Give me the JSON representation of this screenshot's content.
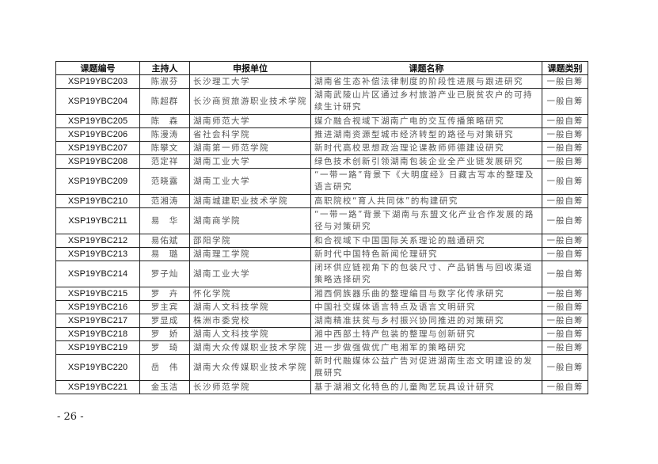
{
  "table": {
    "headers": [
      "课题编号",
      "主持人",
      "申报单位",
      "课题名称",
      "课题类别"
    ],
    "rows": [
      {
        "code": "XSP19YBC203",
        "host": "陈淑芬",
        "unit": "长沙理工大学",
        "title": "湖南省生态补偿法律制度的阶段性进展与跟进研究",
        "category": "一般自筹"
      },
      {
        "code": "XSP19YBC204",
        "host": "陈超群",
        "unit": "长沙商贸旅游职业技术学院",
        "title": "湖南武陵山片区通过乡村旅游产业已脱贫农户的可持续生计研究",
        "category": "一般自筹"
      },
      {
        "code": "XSP19YBC205",
        "host": "陈　森",
        "unit": "湖南师范大学",
        "title": "媒介融合视域下湖南广电的交互传播策略研究",
        "category": "一般自筹"
      },
      {
        "code": "XSP19YBC206",
        "host": "陈漫涛",
        "unit": "省社会科学院",
        "title": "推进湖南资源型城市经济转型的路径与对策研究",
        "category": "一般自筹"
      },
      {
        "code": "XSP19YBC207",
        "host": "陈攀文",
        "unit": "湖南第一师范学院",
        "title": "新时代高校思想政治理论课教师师德建设研究",
        "category": "一般自筹"
      },
      {
        "code": "XSP19YBC208",
        "host": "范定祥",
        "unit": "湖南工业大学",
        "title": "绿色技术创新引领湖南包装企业全产业链发展研究",
        "category": "一般自筹"
      },
      {
        "code": "XSP19YBC209",
        "host": "范晓露",
        "unit": "湖南工业大学",
        "title": "“一带一路”背景下《大明度经》日藏古写本的整理及语言研究",
        "category": "一般自筹"
      },
      {
        "code": "XSP19YBC210",
        "host": "范湘涛",
        "unit": "湖南城建职业技术学院",
        "title": "高职院校“育人共同体”的构建研究",
        "category": "一般自筹"
      },
      {
        "code": "XSP19YBC211",
        "host": "易　华",
        "unit": "湖南商学院",
        "title": "“一带一路”背景下湖南与东盟文化产业合作发展的路径与对策研究",
        "category": "一般自筹"
      },
      {
        "code": "XSP19YBC212",
        "host": "易佑斌",
        "unit": "邵阳学院",
        "title": "和合视域下中国国际关系理论的融通研究",
        "category": "一般自筹"
      },
      {
        "code": "XSP19YBC213",
        "host": "易　璐",
        "unit": "湖南理工学院",
        "title": "新时代中国特色新闻伦理研究",
        "category": "一般自筹"
      },
      {
        "code": "XSP19YBC214",
        "host": "罗子灿",
        "unit": "湖南工业大学",
        "title": "闭环供应链视角下的包装尺寸、产品销售与回收渠道策略选择研究",
        "category": "一般自筹"
      },
      {
        "code": "XSP19YBC215",
        "host": "罗　卉",
        "unit": "怀化学院",
        "title": "湘西侗族器乐曲的整理编目与数字化传承研究",
        "category": "一般自筹"
      },
      {
        "code": "XSP19YBC216",
        "host": "罗主宾",
        "unit": "湖南人文科技学院",
        "title": "中国社交媒体语言特点及语言文明研究",
        "category": "一般自筹"
      },
      {
        "code": "XSP19YBC217",
        "host": "罗显成",
        "unit": "株洲市委党校",
        "title": "湖南精准扶贫与乡村振兴协同推进的对策研究",
        "category": "一般自筹"
      },
      {
        "code": "XSP19YBC218",
        "host": "罗　娇",
        "unit": "湖南人文科技学院",
        "title": "湘中西部土特产包装的整理与创新研究",
        "category": "一般自筹"
      },
      {
        "code": "XSP19YBC219",
        "host": "罗　琦",
        "unit": "湖南大众传媒职业技术学院",
        "title": "进一步做强做优广电湘军的策略研究",
        "category": "一般自筹"
      },
      {
        "code": "XSP19YBC220",
        "host": "岳　伟",
        "unit": "湖南大众传媒职业技术学院",
        "title": "新时代融媒体公益广告对促进湖南生态文明建设的发展研究",
        "category": "一般自筹"
      },
      {
        "code": "XSP19YBC221",
        "host": "金玉洁",
        "unit": "长沙师范学院",
        "title": "基于湖湘文化特色的儿童陶艺玩具设计研究",
        "category": "一般自筹"
      }
    ]
  },
  "footer": {
    "page_number": "- 26 -"
  }
}
